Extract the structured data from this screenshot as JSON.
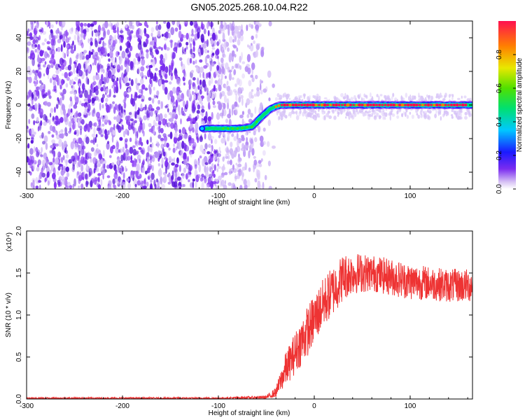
{
  "title": "GN05.2025.268.10.04.R22",
  "chart_data": [
    {
      "type": "heatmap",
      "title": "",
      "xlabel": "Height of straight line (km)",
      "ylabel": "Frequency (Hz)",
      "xlim": [
        -300,
        165
      ],
      "ylim": [
        -50,
        50
      ],
      "x_ticks": [
        "-300",
        "-200",
        "-100",
        "0",
        "100"
      ],
      "y_ticks": [
        "-40",
        "-20",
        "0",
        "20",
        "40"
      ],
      "noise_region_x": [
        -300,
        -65
      ],
      "signal_track": {
        "x": [
          -115,
          -100,
          -80,
          -65,
          -55,
          -45,
          -35,
          -20,
          0,
          50,
          100,
          165
        ],
        "y": [
          -14,
          -14,
          -14,
          -13,
          -7,
          -2,
          0,
          0,
          0,
          0,
          0,
          0
        ]
      },
      "colorbar": {
        "label": "Normalized spectral amplitude",
        "range": [
          0,
          1
        ],
        "ticks": [
          "0.0",
          "0.2",
          "0.4",
          "0.6",
          "0.8"
        ]
      }
    },
    {
      "type": "line",
      "title": "",
      "xlabel": "Height of straight line (km)",
      "ylabel": "SNR (10 * v/v)",
      "multiplier_label": "(x10⁴)",
      "xlim": [
        -300,
        165
      ],
      "ylim": [
        0,
        2.0
      ],
      "x_ticks": [
        "-300",
        "-200",
        "-100",
        "0",
        "100"
      ],
      "y_ticks": [
        "0.0",
        "0.5",
        "1.0",
        "1.5",
        "2.0"
      ],
      "series_color": "#ee3333",
      "envelope": {
        "x": [
          -300,
          -100,
          -50,
          -40,
          -30,
          -20,
          -10,
          0,
          10,
          20,
          30,
          40,
          60,
          80,
          100,
          120,
          140,
          165
        ],
        "mean": [
          0.01,
          0.01,
          0.02,
          0.08,
          0.35,
          0.55,
          0.75,
          0.95,
          1.15,
          1.3,
          1.45,
          1.5,
          1.5,
          1.45,
          1.4,
          1.38,
          1.35,
          1.35
        ],
        "spread": [
          0.01,
          0.01,
          0.02,
          0.06,
          0.2,
          0.25,
          0.3,
          0.3,
          0.3,
          0.3,
          0.28,
          0.25,
          0.22,
          0.22,
          0.22,
          0.2,
          0.2,
          0.2
        ]
      }
    }
  ]
}
